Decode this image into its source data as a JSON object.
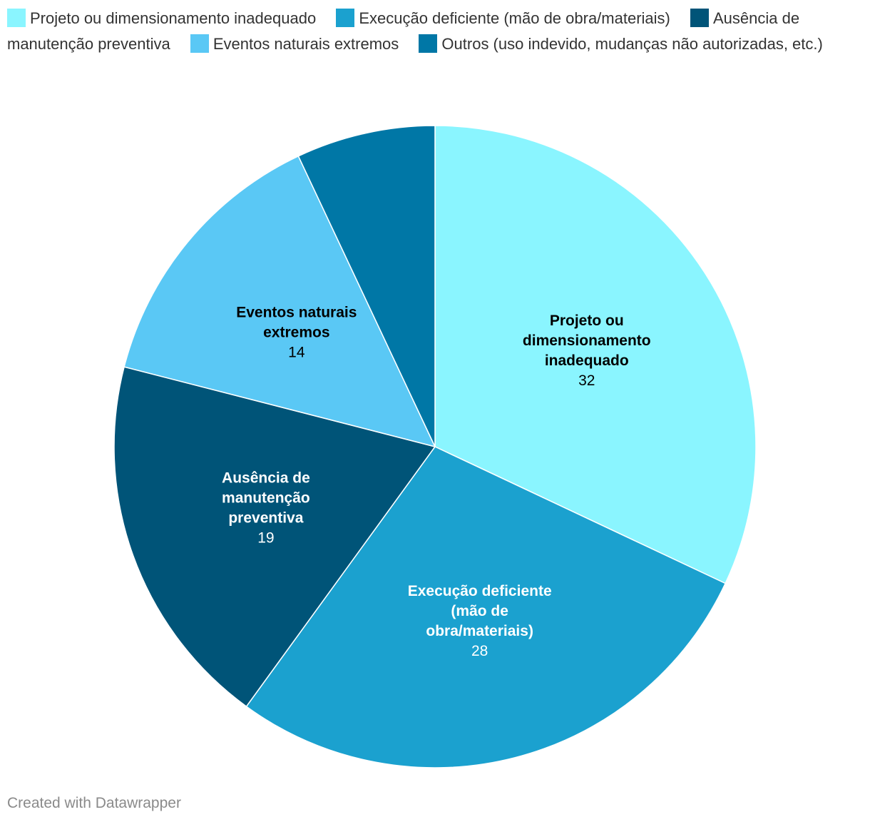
{
  "chart_data": {
    "type": "pie",
    "categories": [
      "Projeto ou dimensionamento inadequado",
      "Execução deficiente (mão de obra/materiais)",
      "Ausência de manutenção preventiva",
      "Eventos naturais extremos",
      "Outros (uso indevido, mudanças não autorizadas, etc.)"
    ],
    "values": [
      32,
      28,
      19,
      14,
      7
    ],
    "colors": [
      "#8af5ff",
      "#1ba1cf",
      "#005478",
      "#5ac8f5",
      "#0077a6"
    ],
    "slice_labels": [
      {
        "lines": [
          "Projeto ou",
          "dimensionamento",
          "inadequado"
        ],
        "value": "32",
        "text_color": "#000000"
      },
      {
        "lines": [
          "Execução deficiente",
          "(mão de",
          "obra/materiais)"
        ],
        "value": "28",
        "text_color": "#ffffff"
      },
      {
        "lines": [
          "Ausência de",
          "manutenção",
          "preventiva"
        ],
        "value": "19",
        "text_color": "#ffffff"
      },
      {
        "lines": [
          "Eventos naturais",
          "extremos"
        ],
        "value": "14",
        "text_color": "#000000"
      },
      {
        "lines": [],
        "value": "",
        "text_color": "#ffffff"
      }
    ],
    "legend_position": "top-left"
  },
  "footer": {
    "credit": "Created with Datawrapper"
  }
}
